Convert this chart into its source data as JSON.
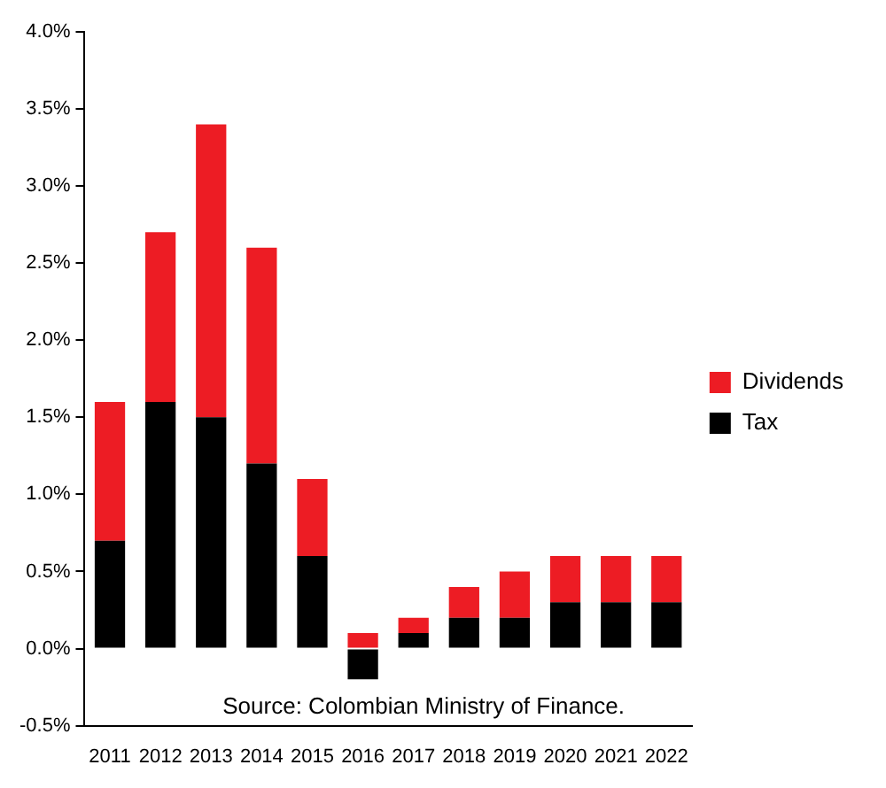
{
  "chart_data": {
    "type": "bar",
    "stacked": true,
    "categories": [
      "2011",
      "2012",
      "2013",
      "2014",
      "2015",
      "2016",
      "2017",
      "2018",
      "2019",
      "2020",
      "2021",
      "2022"
    ],
    "series": [
      {
        "name": "Tax",
        "color": "#000000",
        "values": [
          0.7,
          1.6,
          1.5,
          1.2,
          0.6,
          -0.2,
          0.1,
          0.2,
          0.2,
          0.3,
          0.3,
          0.3
        ]
      },
      {
        "name": "Dividends",
        "color": "#ed1c24",
        "values": [
          0.9,
          1.1,
          1.9,
          1.4,
          0.5,
          0.1,
          0.1,
          0.2,
          0.3,
          0.3,
          0.3,
          0.3
        ]
      }
    ],
    "ylim": [
      -0.5,
      4.0
    ],
    "yticks": [
      {
        "value": -0.5,
        "label": "-0.5%"
      },
      {
        "value": 0,
        "label": "0.0%"
      },
      {
        "value": 0.5,
        "label": "0.5%"
      },
      {
        "value": 1.0,
        "label": "1.0%"
      },
      {
        "value": 1.5,
        "label": "1.5%"
      },
      {
        "value": 2.0,
        "label": "2.0%"
      },
      {
        "value": 2.5,
        "label": "2.5%"
      },
      {
        "value": 3.0,
        "label": "3.0%"
      },
      {
        "value": 3.5,
        "label": "3.5%"
      },
      {
        "value": 4.0,
        "label": "4.0%"
      }
    ],
    "grid": false,
    "legend": "right",
    "annotations": [
      "Source: Colombian Ministry of Finance."
    ]
  }
}
